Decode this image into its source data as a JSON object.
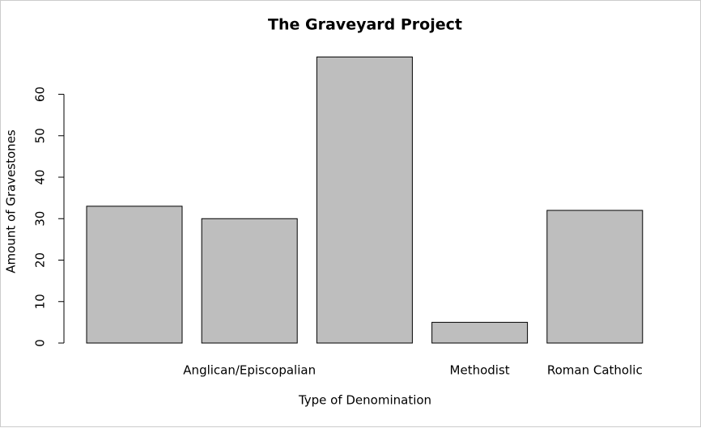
{
  "chart_data": {
    "type": "bar",
    "title": "The Graveyard Project",
    "x_label": "Type of Denomination",
    "y_label": "Amount of Gravestones",
    "categories": [
      null,
      "Anglican/Episcopalian",
      null,
      "Methodist",
      "Roman Catholic"
    ],
    "values": [
      33,
      30,
      69,
      5,
      32
    ],
    "color": "#bebebe",
    "ylim": [
      0,
      69
    ],
    "yticks": [
      0,
      10,
      20,
      30,
      40,
      50,
      60
    ],
    "grid": false
  }
}
